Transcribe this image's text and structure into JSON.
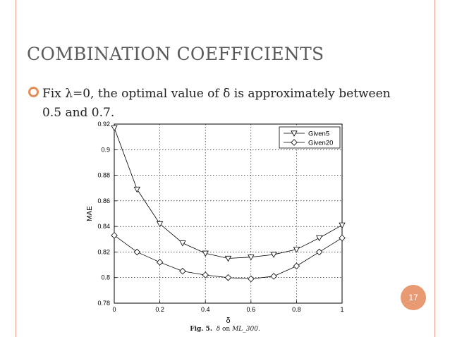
{
  "slide": {
    "title": "COMBINATION COEFFICIENTS",
    "bullet": "Fix λ=0, the optimal value of δ is approximately between 0.5 and 0.7.",
    "page_number": "17",
    "caption_label": "Fig. 5.",
    "caption_symbol": "δ",
    "caption_mid": "on",
    "caption_dataset": "ML_300.",
    "colors": {
      "accent": "#e08f5a",
      "rule": "#e7a48e",
      "badge": "#e89a73",
      "title": "#5b5b5b"
    }
  },
  "chart_data": {
    "type": "line",
    "xlabel": "δ",
    "ylabel": "MAE",
    "xlim": [
      0,
      1
    ],
    "ylim": [
      0.78,
      0.92
    ],
    "xticks": [
      "0",
      "0.2",
      "0.4",
      "0.6",
      "0.8",
      "1"
    ],
    "yticks": [
      "0.78",
      "0.8",
      "0.82",
      "0.84",
      "0.86",
      "0.88",
      "0.9",
      "0.92"
    ],
    "grid": true,
    "legend_position": "top-right",
    "x": [
      0,
      0.1,
      0.2,
      0.3,
      0.4,
      0.5,
      0.6,
      0.7,
      0.8,
      0.9,
      1.0
    ],
    "series": [
      {
        "name": "Given5",
        "marker": "triangle-down",
        "values": [
          0.917,
          0.869,
          0.842,
          0.827,
          0.819,
          0.815,
          0.816,
          0.818,
          0.822,
          0.831,
          0.841
        ]
      },
      {
        "name": "Given20",
        "marker": "diamond",
        "values": [
          0.833,
          0.82,
          0.812,
          0.805,
          0.802,
          0.8,
          0.799,
          0.801,
          0.809,
          0.82,
          0.831
        ]
      }
    ]
  }
}
